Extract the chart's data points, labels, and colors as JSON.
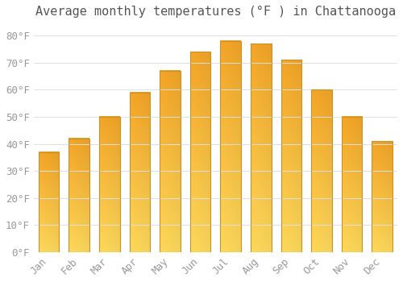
{
  "title": "Average monthly temperatures (°F ) in Chattanooga",
  "months": [
    "Jan",
    "Feb",
    "Mar",
    "Apr",
    "May",
    "Jun",
    "Jul",
    "Aug",
    "Sep",
    "Oct",
    "Nov",
    "Dec"
  ],
  "values": [
    37,
    42,
    50,
    59,
    67,
    74,
    78,
    77,
    71,
    60,
    50,
    41
  ],
  "bar_color_top": "#F5A623",
  "bar_color_bottom": "#FFCC44",
  "bar_edge_color": "#C8922A",
  "ylim": [
    0,
    85
  ],
  "yticks": [
    0,
    10,
    20,
    30,
    40,
    50,
    60,
    70,
    80
  ],
  "background_color": "#FFFFFF",
  "grid_color": "#E0E0E0",
  "title_fontsize": 11,
  "tick_fontsize": 9,
  "title_color": "#555555",
  "tick_color": "#999999",
  "bar_width": 0.68
}
